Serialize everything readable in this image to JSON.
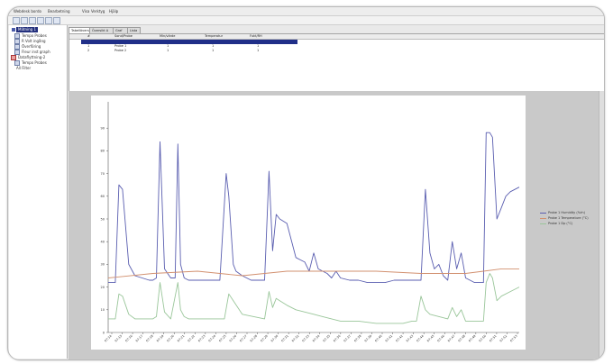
{
  "menubar": {
    "items": [
      "Webdesk bordo",
      "Bearbetning",
      "Visa",
      "Verktyg",
      "Hjälp"
    ]
  },
  "tree": {
    "items": [
      {
        "label": "Mätning 1",
        "selected": true
      },
      {
        "label": "Tempo Probes"
      },
      {
        "label": "R Volt ingång"
      },
      {
        "label": "Överföring"
      },
      {
        "label": "Fleur inst graph"
      },
      {
        "label": "Dataflyttning-2"
      },
      {
        "label": "Tempo Probes"
      },
      {
        "label": "All Filter"
      }
    ]
  },
  "tabs": [
    "Tabellöversikt",
    "Översikt A",
    "Graf",
    "Lista"
  ],
  "grid": {
    "headers": [
      "#",
      "Sond/Probe",
      "Min/värde",
      "Temperatur",
      "Fukt/RH"
    ],
    "rows": [
      {
        "num": "",
        "name": "",
        "c2": "",
        "c3": "",
        "c4": "",
        "selected": true
      },
      {
        "num": "1",
        "name": "Probe 1",
        "c2": "1",
        "c3": "1",
        "c4": "1"
      },
      {
        "num": "2",
        "name": "Probe 2",
        "c2": "1",
        "c3": "1",
        "c4": "1"
      }
    ]
  },
  "legend": [
    {
      "label": "Probe 1 Humidity (%rh)",
      "color": "#5a5eb0"
    },
    {
      "label": "Probe 1 Temperature (°C)",
      "color": "#d2906f"
    },
    {
      "label": "Probe 1 Dp (°C)",
      "color": "#9ac69a"
    }
  ],
  "chart_data": {
    "type": "line",
    "ylim": [
      0,
      100
    ],
    "yticks": [
      "0",
      "10",
      "20",
      "30",
      "40",
      "50",
      "60",
      "70",
      "80",
      "90"
    ],
    "xticks": [
      "07:14",
      "07:15",
      "07:16",
      "07:17",
      "07:18",
      "07:19",
      "07:20",
      "07:21",
      "07:22",
      "07:23",
      "07:24",
      "07:25",
      "07:26",
      "07:27",
      "07:28",
      "07:29",
      "07:30",
      "07:31",
      "07:32",
      "07:33",
      "07:34",
      "07:35",
      "07:36",
      "07:37",
      "07:38",
      "07:39",
      "07:40",
      "07:41",
      "07:42",
      "07:43",
      "07:44",
      "07:45",
      "07:46",
      "07:47",
      "07:48",
      "07:49",
      "07:50",
      "07:51",
      "07:52",
      "07:53"
    ],
    "grid": false,
    "series": [
      {
        "name": "Probe 1 Humidity (%rh)",
        "color": "#5a5eb0",
        "x": [
          0,
          0.8,
          1.2,
          1.6,
          2.3,
          3,
          3.8,
          4.6,
          5,
          5.4,
          5.8,
          6.3,
          7,
          7.5,
          7.8,
          8.1,
          8.5,
          9,
          10,
          11,
          12.5,
          13.2,
          13.5,
          14,
          14.3,
          15,
          16,
          17.5,
          18,
          18.4,
          18.8,
          19.2,
          20,
          21,
          21.5,
          22,
          22.5,
          23,
          23.5,
          24,
          24.5,
          25,
          25.5,
          26,
          27,
          28,
          29,
          30,
          31,
          32,
          33,
          34,
          34.5,
          35,
          35.5,
          36,
          36.5,
          37,
          37.5,
          38,
          38.5,
          39,
          39.5,
          40,
          41,
          42,
          42.3,
          42.7,
          43,
          43.5,
          44,
          44.5,
          45,
          46
        ],
        "y": [
          22,
          22,
          65,
          63,
          30,
          25,
          24,
          23,
          23,
          24,
          84,
          28,
          24,
          24,
          83,
          30,
          24,
          23,
          23,
          23,
          23,
          70,
          60,
          30,
          27,
          25,
          23,
          23,
          71,
          36,
          52,
          50,
          48,
          33,
          32,
          31,
          27,
          35,
          28,
          27,
          26,
          24,
          27,
          24,
          23,
          23,
          22,
          22,
          22,
          23,
          23,
          23,
          23,
          23,
          63,
          35,
          28,
          30,
          25,
          23,
          40,
          28,
          35,
          24,
          22,
          22,
          88,
          88,
          86,
          50,
          55,
          60,
          62,
          64
        ]
      },
      {
        "name": "Probe 1 Temperature (°C)",
        "color": "#d2906f",
        "x": [
          0,
          5,
          10,
          15,
          20,
          25,
          30,
          35,
          40,
          42,
          44,
          46
        ],
        "y": [
          24,
          26,
          27,
          25,
          27,
          27,
          27,
          26,
          26,
          27,
          28,
          28
        ]
      },
      {
        "name": "Probe 1 Dp (°C)",
        "color": "#9ac69a",
        "x": [
          0,
          0.8,
          1.2,
          1.6,
          2.3,
          3,
          5,
          5.4,
          5.8,
          6.3,
          7,
          7.8,
          8.1,
          8.5,
          9,
          13,
          13.5,
          14,
          15,
          17.5,
          18,
          18.4,
          18.8,
          19.2,
          20,
          21,
          22,
          23,
          24,
          25,
          26,
          28,
          30,
          33,
          34,
          34.5,
          35,
          35.5,
          36,
          38,
          38.5,
          39,
          39.5,
          40,
          42,
          42.3,
          42.7,
          43,
          43.5,
          44,
          45,
          46
        ],
        "y": [
          6,
          6,
          17,
          16,
          8,
          6,
          6,
          7,
          22,
          9,
          6,
          22,
          10,
          7,
          6,
          6,
          17,
          14,
          8,
          6,
          18,
          11,
          15,
          14,
          12,
          10,
          9,
          8,
          7,
          6,
          5,
          5,
          4,
          4,
          5,
          5,
          16,
          10,
          8,
          6,
          11,
          7,
          10,
          5,
          5,
          22,
          26,
          24,
          14,
          16,
          18,
          20
        ]
      }
    ]
  }
}
